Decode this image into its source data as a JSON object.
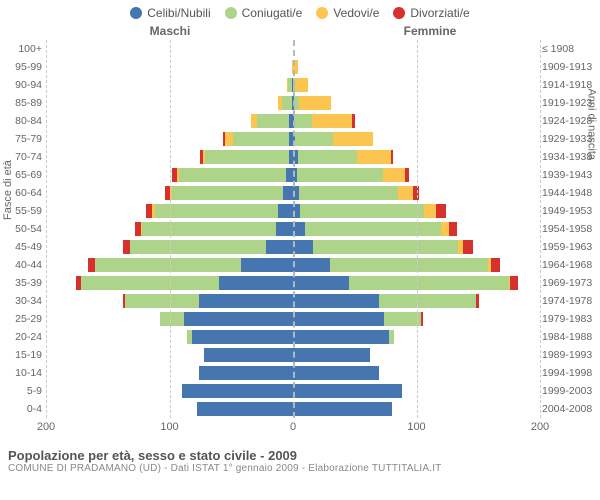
{
  "chart": {
    "type": "population-pyramid",
    "legend": [
      {
        "label": "Celibi/Nubili",
        "color": "#4676b0"
      },
      {
        "label": "Coniugati/e",
        "color": "#aed489"
      },
      {
        "label": "Vedovi/e",
        "color": "#fbc550"
      },
      {
        "label": "Divorziati/e",
        "color": "#d6312c"
      }
    ],
    "gender_left": "Maschi",
    "gender_right": "Femmine",
    "y_title_left": "Fasce di età",
    "y_title_right": "Anni di nascita",
    "x_max": 200,
    "x_ticks": [
      200,
      100,
      0,
      100,
      200
    ],
    "background_color": "#ffffff",
    "grid_color": "#cccccc",
    "center_line_color": "#b0b8c4",
    "rows": [
      {
        "age": "100+",
        "birth": "≤ 1908",
        "m": [
          0,
          0,
          0,
          0
        ],
        "f": [
          0,
          0,
          0,
          0
        ]
      },
      {
        "age": "95-99",
        "birth": "1909-1913",
        "m": [
          0,
          0,
          1,
          0
        ],
        "f": [
          0,
          0,
          4,
          0
        ]
      },
      {
        "age": "90-94",
        "birth": "1914-1918",
        "m": [
          1,
          3,
          1,
          0
        ],
        "f": [
          0,
          2,
          10,
          0
        ]
      },
      {
        "age": "85-89",
        "birth": "1919-1923",
        "m": [
          1,
          8,
          3,
          0
        ],
        "f": [
          1,
          4,
          26,
          0
        ]
      },
      {
        "age": "80-84",
        "birth": "1924-1928",
        "m": [
          3,
          26,
          5,
          0
        ],
        "f": [
          1,
          14,
          33,
          2
        ]
      },
      {
        "age": "75-79",
        "birth": "1929-1933",
        "m": [
          3,
          46,
          6,
          2
        ],
        "f": [
          2,
          30,
          33,
          0
        ]
      },
      {
        "age": "70-74",
        "birth": "1934-1938",
        "m": [
          3,
          68,
          2,
          2
        ],
        "f": [
          4,
          48,
          27,
          2
        ]
      },
      {
        "age": "65-69",
        "birth": "1939-1943",
        "m": [
          6,
          86,
          2,
          4
        ],
        "f": [
          3,
          70,
          18,
          3
        ]
      },
      {
        "age": "60-64",
        "birth": "1944-1948",
        "m": [
          8,
          90,
          2,
          4
        ],
        "f": [
          5,
          80,
          12,
          5
        ]
      },
      {
        "age": "55-59",
        "birth": "1949-1953",
        "m": [
          12,
          100,
          2,
          5
        ],
        "f": [
          6,
          100,
          10,
          8
        ]
      },
      {
        "age": "50-54",
        "birth": "1954-1958",
        "m": [
          14,
          108,
          1,
          5
        ],
        "f": [
          10,
          110,
          6,
          7
        ]
      },
      {
        "age": "45-49",
        "birth": "1959-1963",
        "m": [
          22,
          110,
          0,
          6
        ],
        "f": [
          16,
          118,
          4,
          8
        ]
      },
      {
        "age": "40-44",
        "birth": "1964-1968",
        "m": [
          42,
          118,
          0,
          6
        ],
        "f": [
          30,
          128,
          2,
          8
        ]
      },
      {
        "age": "35-39",
        "birth": "1969-1973",
        "m": [
          60,
          112,
          0,
          4
        ],
        "f": [
          45,
          130,
          1,
          6
        ]
      },
      {
        "age": "30-34",
        "birth": "1974-1978",
        "m": [
          76,
          60,
          0,
          2
        ],
        "f": [
          70,
          78,
          0,
          3
        ]
      },
      {
        "age": "25-29",
        "birth": "1979-1983",
        "m": [
          88,
          20,
          0,
          0
        ],
        "f": [
          74,
          30,
          0,
          1
        ]
      },
      {
        "age": "20-24",
        "birth": "1984-1988",
        "m": [
          82,
          4,
          0,
          0
        ],
        "f": [
          78,
          4,
          0,
          0
        ]
      },
      {
        "age": "15-19",
        "birth": "1989-1993",
        "m": [
          72,
          0,
          0,
          0
        ],
        "f": [
          62,
          0,
          0,
          0
        ]
      },
      {
        "age": "10-14",
        "birth": "1994-1998",
        "m": [
          76,
          0,
          0,
          0
        ],
        "f": [
          70,
          0,
          0,
          0
        ]
      },
      {
        "age": "5-9",
        "birth": "1999-2003",
        "m": [
          90,
          0,
          0,
          0
        ],
        "f": [
          88,
          0,
          0,
          0
        ]
      },
      {
        "age": "0-4",
        "birth": "2004-2008",
        "m": [
          78,
          0,
          0,
          0
        ],
        "f": [
          80,
          0,
          0,
          0
        ]
      }
    ]
  },
  "footer": {
    "title": "Popolazione per età, sesso e stato civile - 2009",
    "sub": "COMUNE DI PRADAMANO (UD) - Dati ISTAT 1° gennaio 2009 - Elaborazione TUTTITALIA.IT"
  }
}
